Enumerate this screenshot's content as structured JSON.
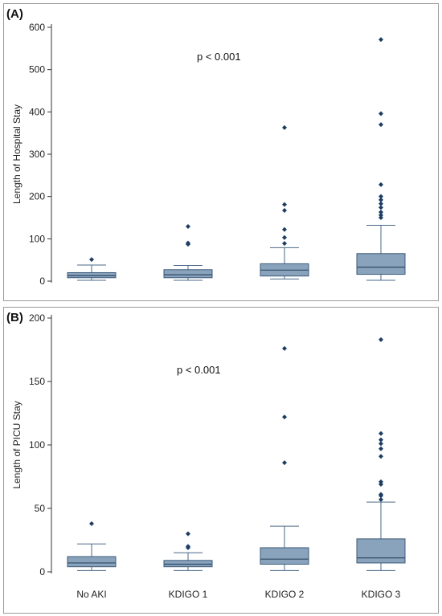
{
  "colors": {
    "box_fill": "#8aa3bd",
    "box_stroke": "#3d5a78",
    "median": "#2f4b66",
    "whisker": "#4a6888",
    "outlier": "#1d3d63",
    "frame": "#9a9a9a"
  },
  "categories": [
    "No AKI",
    "KDIGO 1",
    "KDIGO 2",
    "KDIGO 3"
  ],
  "chart_data": [
    {
      "type": "box",
      "panel_label": "(A)",
      "ylabel": "Length of Hospital Stay",
      "annotation": "p < 0.001",
      "ylim": [
        0,
        600
      ],
      "yticks": [
        0,
        100,
        200,
        300,
        400,
        500,
        600
      ],
      "categories": [
        "No AKI",
        "KDIGO 1",
        "KDIGO 2",
        "KDIGO 3"
      ],
      "boxes": [
        {
          "name": "No AKI",
          "whisker_low": 2,
          "q1": 8,
          "median": 13,
          "q3": 20,
          "whisker_high": 38,
          "outliers": [
            51
          ]
        },
        {
          "name": "KDIGO 1",
          "whisker_low": 2,
          "q1": 8,
          "median": 15,
          "q3": 27,
          "whisker_high": 37,
          "outliers": [
            87,
            90,
            129
          ]
        },
        {
          "name": "KDIGO 2",
          "whisker_low": 5,
          "q1": 12,
          "median": 26,
          "q3": 41,
          "whisker_high": 79,
          "outliers": [
            89,
            103,
            122,
            167,
            181,
            363
          ]
        },
        {
          "name": "KDIGO 3",
          "whisker_low": 2,
          "q1": 16,
          "median": 33,
          "q3": 65,
          "whisker_high": 132,
          "outliers": [
            150,
            156,
            163,
            174,
            183,
            192,
            200,
            228,
            370,
            396,
            571
          ]
        }
      ]
    },
    {
      "type": "box",
      "panel_label": "(B)",
      "ylabel": "Length of PICU Stay",
      "annotation": "p < 0.001",
      "ylim": [
        0,
        200
      ],
      "yticks": [
        0,
        50,
        100,
        150,
        200
      ],
      "categories": [
        "No AKI",
        "KDIGO 1",
        "KDIGO 2",
        "KDIGO 3"
      ],
      "boxes": [
        {
          "name": "No AKI",
          "whisker_low": 1,
          "q1": 4,
          "median": 7,
          "q3": 12,
          "whisker_high": 22,
          "outliers": [
            38
          ]
        },
        {
          "name": "KDIGO 1",
          "whisker_low": 1,
          "q1": 4,
          "median": 6,
          "q3": 9,
          "whisker_high": 15,
          "outliers": [
            19,
            20,
            30
          ]
        },
        {
          "name": "KDIGO 2",
          "whisker_low": 1,
          "q1": 6,
          "median": 10,
          "q3": 19,
          "whisker_high": 36,
          "outliers": [
            86,
            122,
            176
          ]
        },
        {
          "name": "KDIGO 3",
          "whisker_low": 1,
          "q1": 7,
          "median": 11,
          "q3": 26,
          "whisker_high": 55,
          "outliers": [
            57,
            60,
            61,
            69,
            71,
            91,
            97,
            101,
            104,
            109,
            183
          ]
        }
      ]
    }
  ]
}
